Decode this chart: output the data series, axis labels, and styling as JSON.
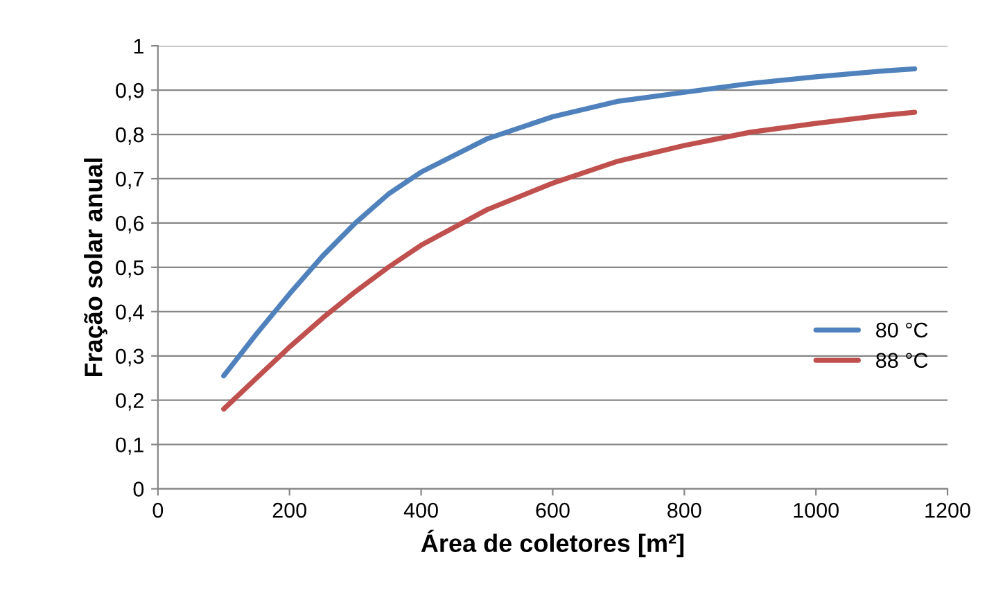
{
  "chart_data": {
    "type": "line",
    "xlabel": "Área de coletores [m²]",
    "ylabel": "Fração solar anual",
    "x": [
      100,
      150,
      200,
      250,
      300,
      350,
      400,
      500,
      600,
      700,
      800,
      900,
      1000,
      1100,
      1150
    ],
    "series": [
      {
        "name": "80 °C",
        "color": "#4f81bd",
        "values": [
          0.255,
          0.35,
          0.44,
          0.525,
          0.6,
          0.665,
          0.715,
          0.79,
          0.84,
          0.875,
          0.895,
          0.915,
          0.93,
          0.943,
          0.948
        ]
      },
      {
        "name": "88 °C",
        "color": "#c0504d",
        "values": [
          0.18,
          0.25,
          0.32,
          0.385,
          0.445,
          0.5,
          0.55,
          0.63,
          0.69,
          0.74,
          0.775,
          0.805,
          0.825,
          0.843,
          0.85
        ]
      }
    ],
    "xlim": [
      0,
      1200
    ],
    "xticks": [
      0,
      200,
      400,
      600,
      800,
      1000,
      1200
    ],
    "ylim": [
      0,
      1
    ],
    "yticks": [
      0,
      {
        "value": 0.1,
        "label": "0,1"
      },
      {
        "value": 0.2,
        "label": "0,2"
      },
      {
        "value": 0.3,
        "label": "0,3"
      },
      {
        "value": 0.4,
        "label": "0,4"
      },
      {
        "value": 0.5,
        "label": "0,5"
      },
      {
        "value": 0.6,
        "label": "0,6"
      },
      {
        "value": 0.7,
        "label": "0,7"
      },
      {
        "value": 0.8,
        "label": "0,8"
      },
      {
        "value": 0.9,
        "label": "0,9"
      },
      1
    ],
    "grid": "y",
    "legend": "center right",
    "marker": "none",
    "line_style": "solid"
  }
}
